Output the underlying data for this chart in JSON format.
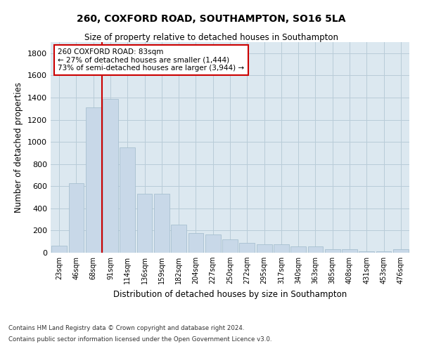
{
  "title_line1": "260, COXFORD ROAD, SOUTHAMPTON, SO16 5LA",
  "title_line2": "Size of property relative to detached houses in Southampton",
  "xlabel": "Distribution of detached houses by size in Southampton",
  "ylabel": "Number of detached properties",
  "footnote1": "Contains HM Land Registry data © Crown copyright and database right 2024.",
  "footnote2": "Contains public sector information licensed under the Open Government Licence v3.0.",
  "bar_color": "#c8d8e8",
  "bar_edgecolor": "#a8c0d0",
  "grid_color": "#b8ccd8",
  "annotation_box_color": "#cc0000",
  "vline_color": "#cc0000",
  "bg_color": "#dce8f0",
  "categories": [
    "23sqm",
    "46sqm",
    "68sqm",
    "91sqm",
    "114sqm",
    "136sqm",
    "159sqm",
    "182sqm",
    "204sqm",
    "227sqm",
    "250sqm",
    "272sqm",
    "295sqm",
    "317sqm",
    "340sqm",
    "363sqm",
    "385sqm",
    "408sqm",
    "431sqm",
    "453sqm",
    "476sqm"
  ],
  "values": [
    65,
    630,
    1310,
    1390,
    950,
    530,
    530,
    255,
    175,
    165,
    120,
    90,
    75,
    75,
    55,
    55,
    30,
    30,
    15,
    15,
    30
  ],
  "ylim": [
    0,
    1900
  ],
  "yticks": [
    0,
    200,
    400,
    600,
    800,
    1000,
    1200,
    1400,
    1600,
    1800
  ],
  "annotation_text": "260 COXFORD ROAD: 83sqm\n← 27% of detached houses are smaller (1,444)\n73% of semi-detached houses are larger (3,944) →",
  "vline_x_index": 2.5
}
